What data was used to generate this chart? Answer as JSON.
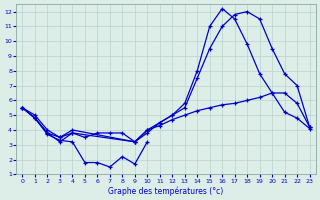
{
  "title": "Graphe des températures (°c)",
  "background_color": "#ddeee8",
  "grid_color": "#b8d4cc",
  "line_color": "#0000cc",
  "xlim": [
    -0.5,
    23.5
  ],
  "ylim": [
    1,
    12.5
  ],
  "xticks": [
    0,
    1,
    2,
    3,
    4,
    5,
    6,
    7,
    8,
    9,
    10,
    11,
    12,
    13,
    14,
    15,
    16,
    17,
    18,
    19,
    20,
    21,
    22,
    23
  ],
  "yticks": [
    1,
    2,
    3,
    4,
    5,
    6,
    7,
    8,
    9,
    10,
    11,
    12
  ],
  "series": [
    {
      "x": [
        0,
        1,
        2,
        3,
        4,
        5,
        6,
        7,
        8,
        9,
        10
      ],
      "y": [
        5.5,
        4.8,
        3.7,
        3.3,
        3.2,
        1.8,
        1.8,
        1.5,
        2.2,
        1.7,
        3.2
      ]
    },
    {
      "x": [
        0,
        1,
        2,
        3,
        4,
        5,
        6,
        7,
        8,
        9,
        10,
        11,
        12,
        13,
        14,
        15,
        16,
        17,
        18,
        19,
        20,
        21,
        22,
        23
      ],
      "y": [
        5.5,
        5.0,
        4.0,
        3.5,
        3.8,
        3.5,
        3.8,
        3.8,
        3.8,
        3.2,
        4.0,
        4.3,
        4.7,
        5.0,
        5.3,
        5.5,
        5.7,
        5.8,
        6.0,
        6.2,
        6.5,
        6.5,
        5.8,
        4.2
      ]
    },
    {
      "x": [
        0,
        1,
        2,
        3,
        4,
        9,
        10,
        11,
        12,
        13,
        14,
        15,
        16,
        17,
        18,
        19,
        20,
        21,
        22,
        23
      ],
      "y": [
        5.5,
        4.8,
        3.8,
        3.5,
        4.0,
        3.2,
        4.0,
        4.5,
        5.0,
        5.5,
        7.5,
        9.5,
        11.0,
        11.8,
        12.0,
        11.5,
        9.5,
        7.8,
        7.0,
        4.2
      ]
    },
    {
      "x": [
        0,
        1,
        2,
        3,
        4,
        9,
        10,
        11,
        12,
        13,
        14,
        15,
        16,
        17,
        18,
        19,
        20,
        21,
        22,
        23
      ],
      "y": [
        5.5,
        4.8,
        3.8,
        3.2,
        3.8,
        3.2,
        3.8,
        4.5,
        5.0,
        5.8,
        8.0,
        11.0,
        12.2,
        11.5,
        9.8,
        7.8,
        6.5,
        5.2,
        4.8,
        4.1
      ]
    }
  ]
}
